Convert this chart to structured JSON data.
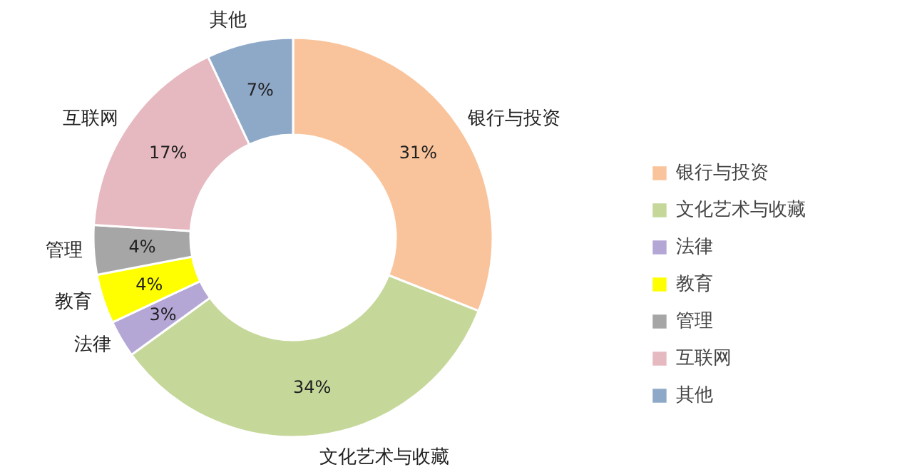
{
  "chart_data": {
    "type": "donut",
    "categories": [
      "银行与投资",
      "文化艺术与收藏",
      "法律",
      "教育",
      "管理",
      "互联网",
      "其他"
    ],
    "values": [
      31,
      34,
      3,
      4,
      4,
      17,
      7
    ],
    "value_labels": [
      "31%",
      "34%",
      "3%",
      "4%",
      "4%",
      "17%",
      "7%"
    ],
    "colors": [
      "#f9c49b",
      "#c5d89a",
      "#b4a7d6",
      "#ffff00",
      "#a6a6a6",
      "#e6b9c0",
      "#8ea9c8"
    ],
    "legend": "right"
  }
}
